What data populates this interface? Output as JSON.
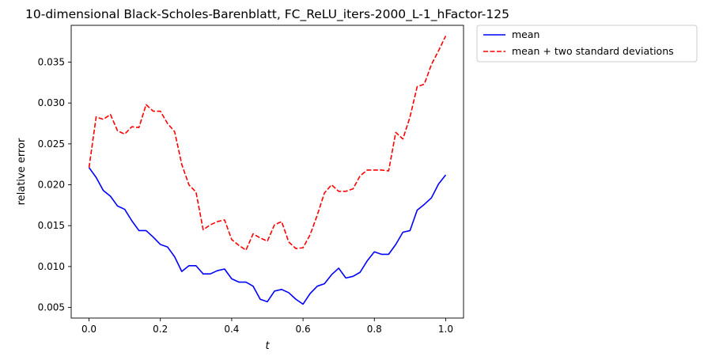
{
  "chart_data": {
    "type": "line",
    "title": "10-dimensional Black-Scholes-Barenblatt, FC_ReLU_iters-2000_L-1_hFactor-125",
    "xlabel": "t",
    "ylabel": "relative error",
    "xlim": [
      -0.05,
      1.05
    ],
    "ylim": [
      0.0037,
      0.0395
    ],
    "xticks": [
      0.0,
      0.2,
      0.4,
      0.6,
      0.8,
      1.0
    ],
    "xtick_labels": [
      "0.0",
      "0.2",
      "0.4",
      "0.6",
      "0.8",
      "1.0"
    ],
    "yticks": [
      0.005,
      0.01,
      0.015,
      0.02,
      0.025,
      0.03,
      0.035
    ],
    "ytick_labels": [
      "0.005",
      "0.010",
      "0.015",
      "0.020",
      "0.025",
      "0.030",
      "0.035"
    ],
    "grid": false,
    "legend_position": "outside-top-right",
    "x": [
      0.0,
      0.02,
      0.04,
      0.06,
      0.08,
      0.1,
      0.12,
      0.14,
      0.16,
      0.18,
      0.2,
      0.22,
      0.24,
      0.26,
      0.28,
      0.3,
      0.32,
      0.34,
      0.36,
      0.38,
      0.4,
      0.42,
      0.44,
      0.46,
      0.48,
      0.5,
      0.52,
      0.54,
      0.56,
      0.58,
      0.6,
      0.62,
      0.64,
      0.66,
      0.68,
      0.7,
      0.72,
      0.74,
      0.76,
      0.78,
      0.8,
      0.82,
      0.84,
      0.86,
      0.88,
      0.9,
      0.92,
      0.94,
      0.96,
      0.98,
      1.0
    ],
    "series": [
      {
        "name": "mean",
        "color": "#0000ff",
        "dash": "solid",
        "values": [
          0.0221,
          0.0209,
          0.0193,
          0.0186,
          0.0174,
          0.017,
          0.0156,
          0.0144,
          0.0144,
          0.0136,
          0.0127,
          0.0124,
          0.0112,
          0.0094,
          0.0101,
          0.0101,
          0.0091,
          0.0091,
          0.0095,
          0.0097,
          0.0085,
          0.0081,
          0.0081,
          0.0076,
          0.006,
          0.0057,
          0.007,
          0.0072,
          0.0068,
          0.006,
          0.0054,
          0.0067,
          0.0076,
          0.0079,
          0.009,
          0.0098,
          0.0086,
          0.0088,
          0.0093,
          0.0107,
          0.0118,
          0.0115,
          0.0115,
          0.0127,
          0.0142,
          0.0144,
          0.0169,
          0.0176,
          0.0184,
          0.0201,
          0.0212
        ]
      },
      {
        "name": "mean + two standard deviations",
        "color": "#ff0000",
        "dash": "dashed",
        "values": [
          0.0221,
          0.0283,
          0.028,
          0.0286,
          0.0266,
          0.0262,
          0.0271,
          0.027,
          0.0298,
          0.029,
          0.029,
          0.0275,
          0.0265,
          0.0225,
          0.02,
          0.0191,
          0.0145,
          0.0151,
          0.0155,
          0.0157,
          0.0133,
          0.0126,
          0.012,
          0.014,
          0.0135,
          0.0131,
          0.0151,
          0.0155,
          0.013,
          0.0122,
          0.0123,
          0.0139,
          0.0163,
          0.019,
          0.02,
          0.0192,
          0.0192,
          0.0195,
          0.0211,
          0.0218,
          0.0218,
          0.0218,
          0.0217,
          0.0264,
          0.0256,
          0.0283,
          0.032,
          0.0323,
          0.0347,
          0.0364,
          0.0382
        ]
      }
    ]
  }
}
